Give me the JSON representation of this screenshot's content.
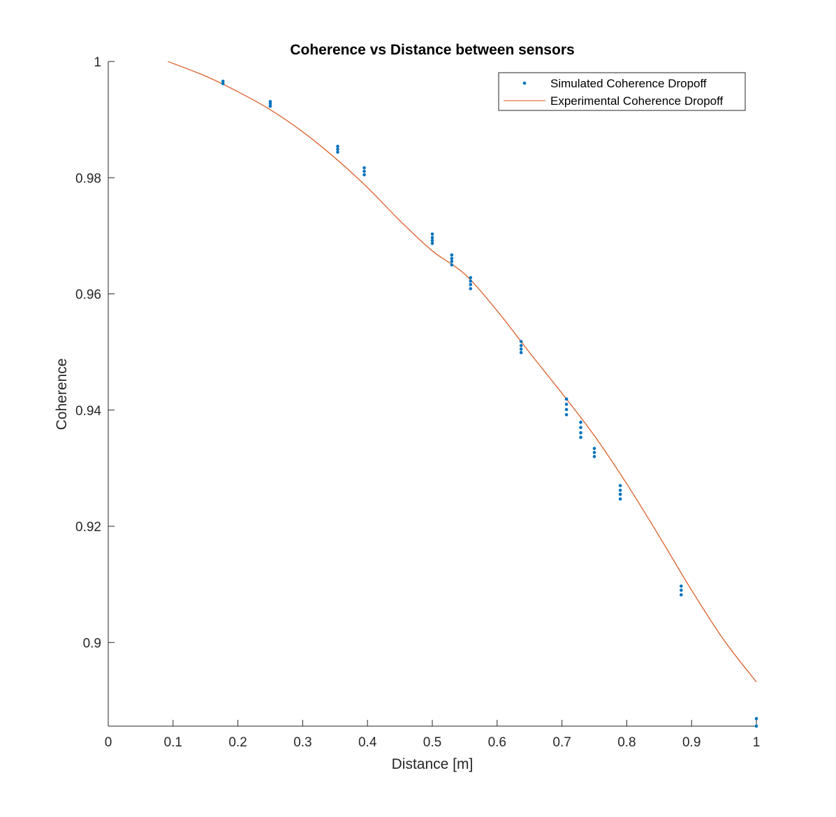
{
  "chart_data": {
    "type": "scatter",
    "title": "Coherence vs Distance between sensors",
    "xlabel": "Distance [m]",
    "ylabel": "Coherence",
    "xlim": [
      0,
      1
    ],
    "ylim": [
      0.8856,
      1.0
    ],
    "xticks": [
      0,
      0.1,
      0.2,
      0.3,
      0.4,
      0.5,
      0.6,
      0.7,
      0.8,
      0.9,
      1
    ],
    "xtick_labels": [
      "0",
      "0.1",
      "0.2",
      "0.3",
      "0.4",
      "0.5",
      "0.6",
      "0.7",
      "0.8",
      "0.9",
      "1"
    ],
    "yticks": [
      0.9,
      0.92,
      0.94,
      0.96,
      0.98,
      1.0
    ],
    "ytick_labels": [
      "0.9",
      "0.92",
      "0.94",
      "0.96",
      "0.98",
      "1"
    ],
    "grid": false,
    "legend_position": "top-right",
    "series": [
      {
        "name": "Simulated Coherence Dropoff",
        "type": "scatter",
        "color": "#0072BD",
        "points": [
          {
            "x": 0.177,
            "y": 0.9966
          },
          {
            "x": 0.177,
            "y": 0.9962
          },
          {
            "x": 0.25,
            "y": 0.9931
          },
          {
            "x": 0.25,
            "y": 0.9927
          },
          {
            "x": 0.25,
            "y": 0.9923
          },
          {
            "x": 0.354,
            "y": 0.9854
          },
          {
            "x": 0.354,
            "y": 0.9849
          },
          {
            "x": 0.354,
            "y": 0.9844
          },
          {
            "x": 0.395,
            "y": 0.9817
          },
          {
            "x": 0.395,
            "y": 0.9811
          },
          {
            "x": 0.395,
            "y": 0.9805
          },
          {
            "x": 0.5,
            "y": 0.9703
          },
          {
            "x": 0.5,
            "y": 0.9697
          },
          {
            "x": 0.5,
            "y": 0.9692
          },
          {
            "x": 0.5,
            "y": 0.9687
          },
          {
            "x": 0.53,
            "y": 0.9667
          },
          {
            "x": 0.53,
            "y": 0.9661
          },
          {
            "x": 0.53,
            "y": 0.9656
          },
          {
            "x": 0.53,
            "y": 0.965
          },
          {
            "x": 0.559,
            "y": 0.9628
          },
          {
            "x": 0.559,
            "y": 0.9622
          },
          {
            "x": 0.559,
            "y": 0.9616
          },
          {
            "x": 0.559,
            "y": 0.9609
          },
          {
            "x": 0.637,
            "y": 0.9518
          },
          {
            "x": 0.637,
            "y": 0.9511
          },
          {
            "x": 0.637,
            "y": 0.9505
          },
          {
            "x": 0.637,
            "y": 0.9499
          },
          {
            "x": 0.707,
            "y": 0.9419
          },
          {
            "x": 0.707,
            "y": 0.941
          },
          {
            "x": 0.707,
            "y": 0.9401
          },
          {
            "x": 0.707,
            "y": 0.9392
          },
          {
            "x": 0.729,
            "y": 0.9379
          },
          {
            "x": 0.729,
            "y": 0.937
          },
          {
            "x": 0.729,
            "y": 0.9361
          },
          {
            "x": 0.729,
            "y": 0.9353
          },
          {
            "x": 0.75,
            "y": 0.9334
          },
          {
            "x": 0.75,
            "y": 0.9327
          },
          {
            "x": 0.75,
            "y": 0.932
          },
          {
            "x": 0.79,
            "y": 0.927
          },
          {
            "x": 0.79,
            "y": 0.9262
          },
          {
            "x": 0.79,
            "y": 0.9255
          },
          {
            "x": 0.79,
            "y": 0.9247
          },
          {
            "x": 0.884,
            "y": 0.9097
          },
          {
            "x": 0.884,
            "y": 0.909
          },
          {
            "x": 0.884,
            "y": 0.9082
          },
          {
            "x": 1.0,
            "y": 0.8869
          },
          {
            "x": 1.0,
            "y": 0.8856
          }
        ]
      },
      {
        "name": "Experimental Coherence Dropoff",
        "type": "line",
        "color": "#D95319",
        "x": [
          0.092,
          0.15,
          0.2,
          0.25,
          0.3,
          0.35,
          0.4,
          0.45,
          0.5,
          0.55,
          0.6,
          0.65,
          0.7,
          0.75,
          0.8,
          0.85,
          0.9,
          0.95,
          1.0
        ],
        "y": [
          1.0,
          0.9975,
          0.9948,
          0.9917,
          0.9879,
          0.9834,
          0.9783,
          0.9726,
          0.9674,
          0.9634,
          0.9571,
          0.9499,
          0.9429,
          0.9356,
          0.9273,
          0.9183,
          0.909,
          0.9004,
          0.8932
        ]
      }
    ]
  }
}
